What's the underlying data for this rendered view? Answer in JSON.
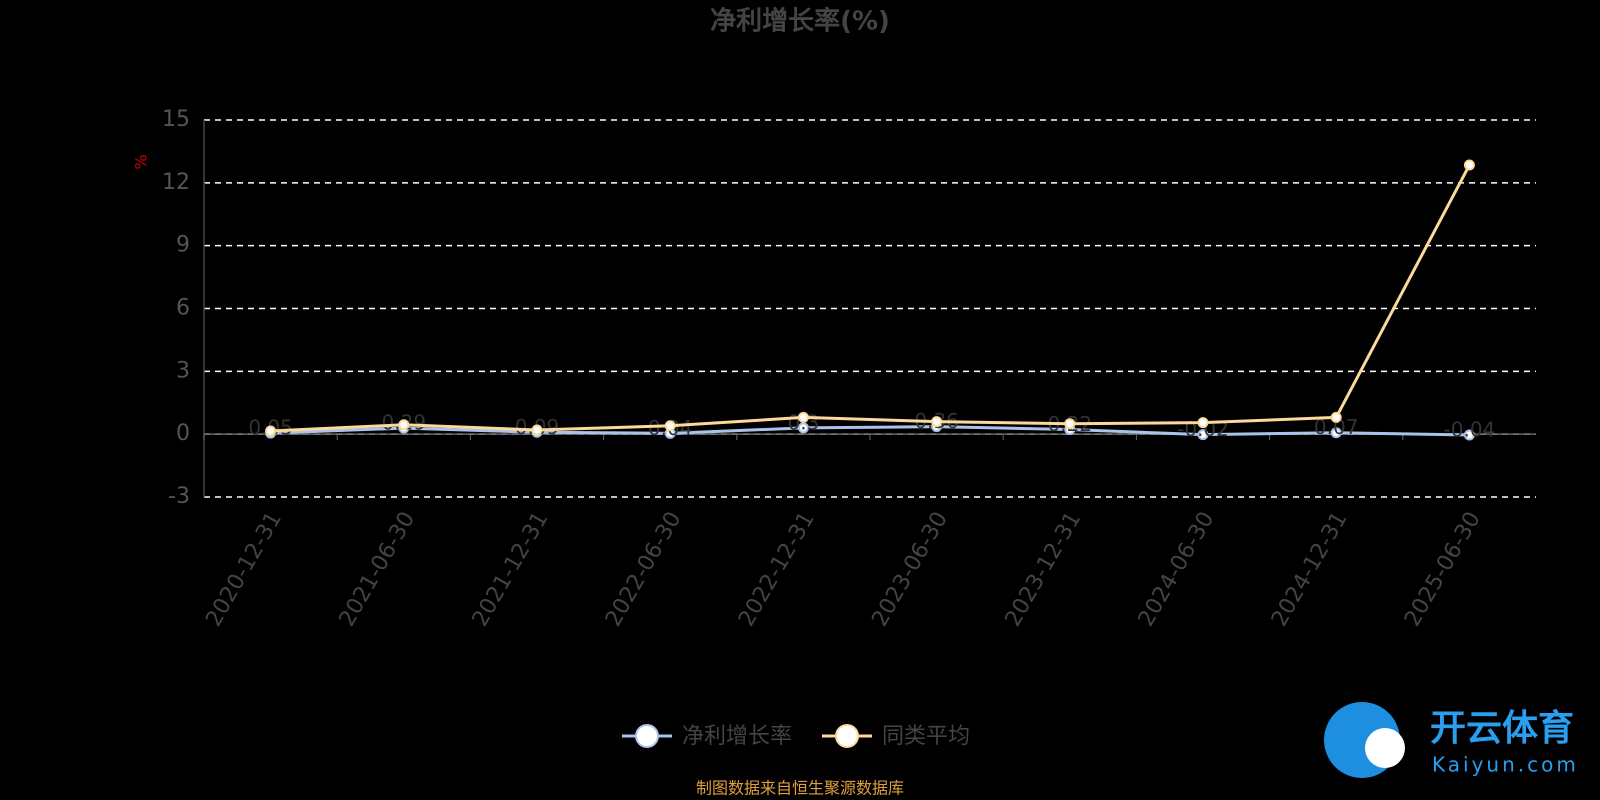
{
  "chart_data": {
    "type": "line",
    "title": "净利增长率(%)",
    "y_label": "%",
    "categories": [
      "2020-12-31",
      "2021-06-30",
      "2021-12-31",
      "2022-06-30",
      "2022-12-31",
      "2023-06-30",
      "2023-12-31",
      "2024-06-30",
      "2024-12-31",
      "2025-06-30"
    ],
    "series": [
      {
        "name": "净利增长率",
        "color": "#a9c4e8",
        "values": [
          0.05,
          0.29,
          0.09,
          0.04,
          0.3,
          0.36,
          0.22,
          -0.02,
          0.07,
          -0.04
        ]
      },
      {
        "name": "同类平均",
        "color": "#fbd99a",
        "values": [
          0.15,
          0.45,
          0.2,
          0.4,
          0.8,
          0.6,
          0.5,
          0.55,
          0.8,
          12.85
        ]
      }
    ],
    "ylim": [
      -3,
      15
    ],
    "yticks": [
      -3,
      0,
      3,
      6,
      9,
      12,
      15
    ],
    "grid": true,
    "legend": "bottom"
  },
  "source": "制图数据来自恒生聚源数据库",
  "watermark": {
    "title": "开云体育",
    "subtitle": "Kaiyun.com"
  }
}
